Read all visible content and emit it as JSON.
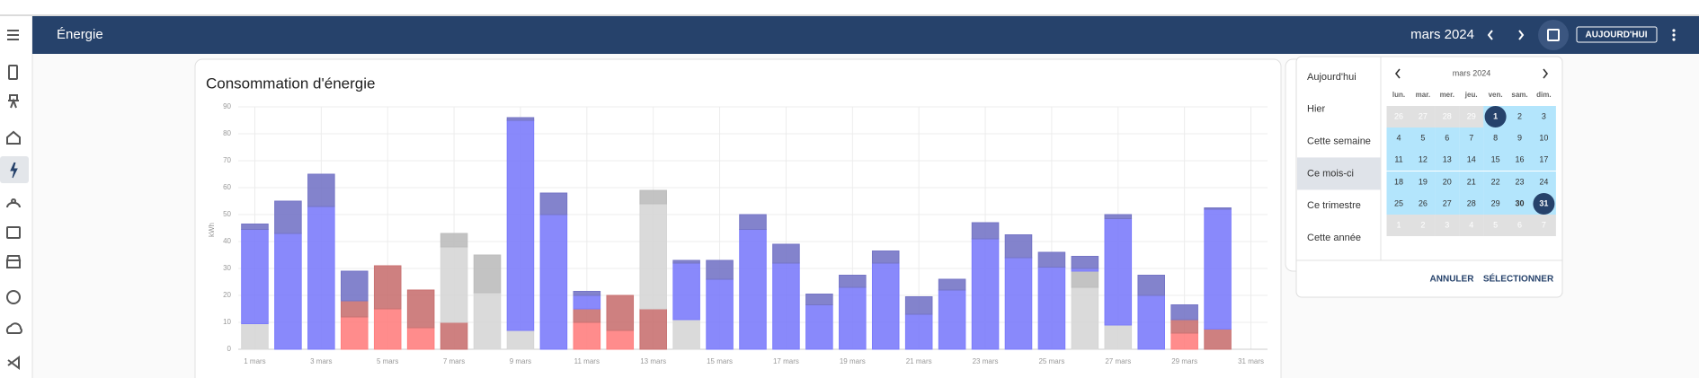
{
  "header": {
    "title": "Énergie",
    "period": "mars 2024",
    "today_button": "AUJOURD'HUI"
  },
  "chart_data": {
    "type": "bar",
    "stacked": true,
    "title": "Consommation d'énergie",
    "y_label": "kWh",
    "categories": [
      "1 mars",
      null,
      "3 mars",
      null,
      "5 mars",
      null,
      "7 mars",
      null,
      "9 mars",
      null,
      "11 mars",
      null,
      "13 mars",
      null,
      "15 mars",
      null,
      "17 mars",
      null,
      "19 mars",
      null,
      "21 mars",
      null,
      "23 mars",
      null,
      "25 mars",
      null,
      "27 mars",
      null,
      "29 mars",
      null,
      "31 mars"
    ],
    "series": [
      {
        "color": "#ff7f7f",
        "values": [
          0,
          0,
          0,
          12,
          15,
          8,
          0,
          0,
          0,
          0,
          10,
          7,
          0,
          0,
          0,
          0,
          0,
          0,
          0,
          0,
          0,
          0,
          0,
          0,
          0,
          0,
          0,
          0,
          6,
          0,
          null
        ]
      },
      {
        "color": "#c97272",
        "values": [
          0,
          0,
          0,
          6,
          16,
          14,
          10,
          0,
          0,
          0,
          5,
          13,
          15,
          0,
          0,
          0,
          0,
          0,
          0,
          0,
          0,
          0,
          0,
          0,
          0,
          0,
          0,
          0,
          5,
          7.5,
          null
        ]
      },
      {
        "color": "#d6d6d6",
        "values": [
          9.5,
          0,
          0,
          0,
          0,
          0,
          28,
          21,
          7,
          0,
          0,
          0,
          39,
          11,
          0,
          0,
          0,
          0,
          0,
          0,
          0,
          0,
          0,
          0,
          0,
          23,
          9,
          0,
          0,
          0,
          null
        ]
      },
      {
        "color": "#bdbdbd",
        "values": [
          0,
          0,
          0,
          0,
          0,
          0,
          5,
          14,
          0,
          0,
          0,
          0,
          5,
          0,
          0,
          0,
          0,
          0,
          0,
          0,
          0,
          0,
          0,
          0,
          0,
          6,
          0,
          0,
          0,
          0,
          null
        ]
      },
      {
        "color": "#7c7cfb",
        "values": [
          35,
          43,
          53,
          0,
          0,
          0,
          0,
          0,
          78,
          50,
          5,
          0,
          0,
          21,
          26,
          44.5,
          32,
          16.5,
          23,
          32,
          13,
          22,
          41,
          34,
          30.5,
          1,
          39.5,
          20,
          0,
          44.5,
          null
        ]
      },
      {
        "color": "#7575c6",
        "values": [
          2,
          12,
          12,
          11,
          0,
          0,
          0,
          0,
          1,
          8,
          1.5,
          0,
          0,
          1,
          7,
          5.5,
          7,
          4,
          4.5,
          4.5,
          6.5,
          4,
          6,
          8.5,
          5.5,
          4.5,
          1.5,
          7.5,
          5.5,
          0.5,
          null
        ]
      }
    ],
    "ylim": [
      0,
      90
    ],
    "yticks": [
      0,
      10,
      20,
      30,
      40,
      50,
      60,
      70,
      80,
      90
    ],
    "grid": true
  },
  "date_picker": {
    "presets": [
      "Aujourd'hui",
      "Hier",
      "Cette semaine",
      "Ce mois-ci",
      "Ce trimestre",
      "Cette année"
    ],
    "calendar": {
      "month": "mars 2024",
      "weekdays": [
        "lun.",
        "mar.",
        "mer.",
        "jeu.",
        "ven.",
        "sam.",
        "dim."
      ],
      "weeks": [
        [
          26,
          27,
          28,
          29,
          1,
          2,
          3
        ],
        [
          4,
          5,
          6,
          7,
          8,
          9,
          10
        ],
        [
          11,
          12,
          13,
          14,
          15,
          16,
          17
        ],
        [
          18,
          19,
          20,
          21,
          22,
          23,
          24
        ],
        [
          25,
          26,
          27,
          28,
          29,
          30,
          31
        ],
        [
          1,
          2,
          3,
          4,
          5,
          6,
          7
        ]
      ]
    },
    "actions": [
      "ANNULER",
      "SÉLECTIONNER"
    ]
  }
}
